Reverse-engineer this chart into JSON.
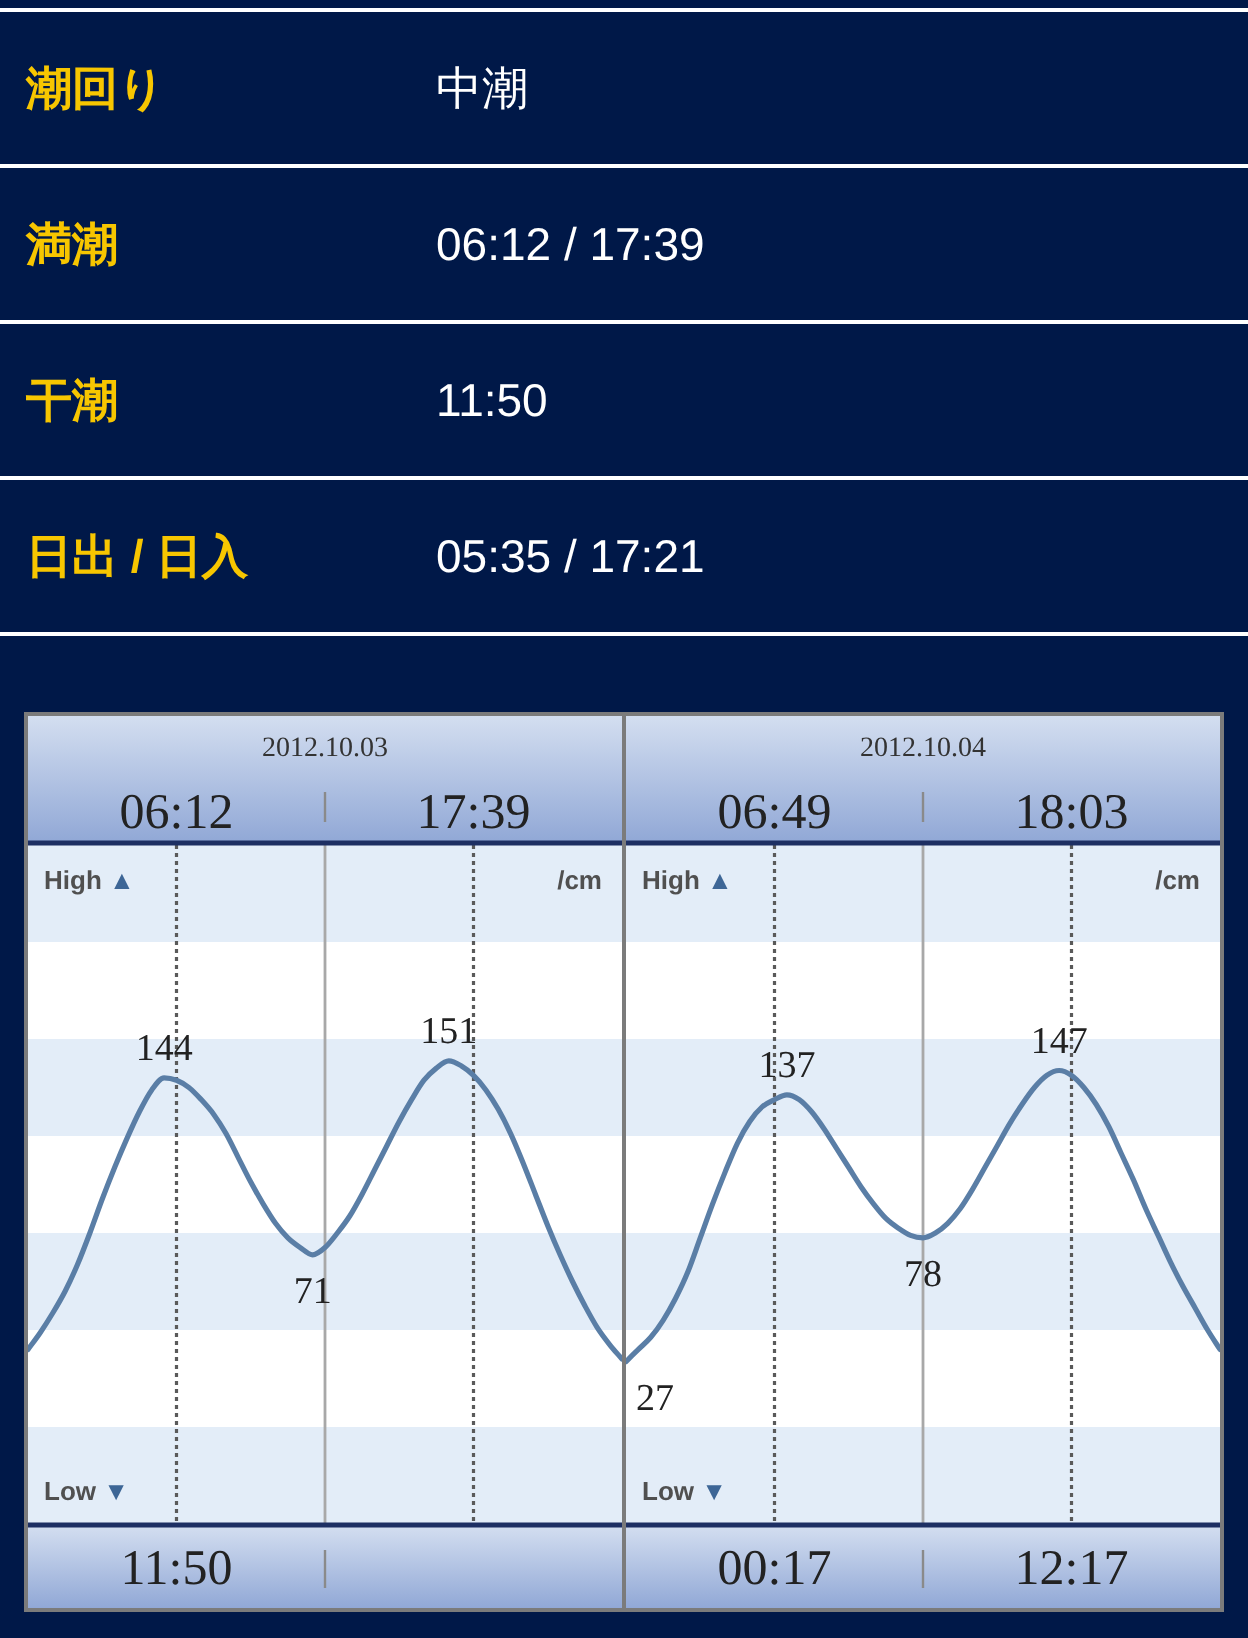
{
  "chart_data": [
    {
      "type": "other",
      "annotations": [
        "潮回り",
        "中潮",
        "満潮",
        "06:12 / 17:39",
        "干潮",
        "11:50",
        "日出 / 日入",
        "05:35 / 17:21"
      ]
    },
    {
      "type": "line",
      "title": "2012.10.03",
      "ylabel": "/cm",
      "annotations": [
        "High ▲",
        "Low ▼",
        "06:12",
        "17:39",
        "11:50"
      ],
      "ylim": [
        -40,
        240
      ],
      "categories": [
        null,
        null,
        null,
        null,
        null,
        null,
        null,
        null,
        null,
        null,
        null,
        null,
        null,
        null,
        null,
        null,
        null,
        null,
        null,
        null,
        null,
        null,
        null,
        null,
        null,
        null,
        null,
        null,
        null,
        null,
        null,
        null,
        null,
        null,
        null,
        null,
        null,
        null,
        null,
        null,
        null,
        null,
        null,
        null,
        null,
        null,
        null,
        null,
        null
      ],
      "bands": [
        {
          "axis": "y",
          "from": 200,
          "to": 240,
          "color": "#e3edf8"
        },
        {
          "axis": "y",
          "from": 120,
          "to": 160,
          "color": "#e3edf8"
        },
        {
          "axis": "y",
          "from": 40,
          "to": 80,
          "color": "#e3edf8"
        },
        {
          "axis": "y",
          "from": -40,
          "to": 0,
          "color": "#e3edf8"
        }
      ],
      "series": [
        {
          "color": "#5a7ea6",
          "values": [
            32,
            39,
            47,
            56,
            67,
            80,
            94,
            107,
            119,
            130,
            139,
            144,
            143,
            140,
            135,
            129,
            121,
            111,
            101,
            92,
            84,
            78,
            74,
            71,
            74,
            80,
            87,
            96,
            106,
            116,
            126,
            135,
            143,
            148,
            151,
            149,
            145,
            139,
            131,
            121,
            109,
            96,
            83,
            71,
            60,
            50,
            41,
            34,
            28
          ],
          "value_labels": [
            null,
            null,
            null,
            null,
            null,
            null,
            null,
            null,
            null,
            null,
            null,
            "144",
            null,
            null,
            null,
            null,
            null,
            null,
            null,
            null,
            null,
            null,
            null,
            "71",
            null,
            null,
            null,
            null,
            null,
            null,
            null,
            null,
            null,
            null,
            "151",
            null,
            null,
            null,
            null,
            null,
            null,
            null,
            null,
            null,
            null,
            null,
            null,
            null,
            null
          ]
        }
      ]
    },
    {
      "type": "line",
      "title": "2012.10.04",
      "ylabel": "/cm",
      "annotations": [
        "High ▲",
        "Low ▼",
        "06:49",
        "18:03",
        "00:17",
        "12:17"
      ],
      "ylim": [
        -40,
        240
      ],
      "categories": [
        null,
        null,
        null,
        null,
        null,
        null,
        null,
        null,
        null,
        null,
        null,
        null,
        null,
        null,
        null,
        null,
        null,
        null,
        null,
        null,
        null,
        null,
        null,
        null,
        null,
        null,
        null,
        null,
        null,
        null,
        null,
        null,
        null,
        null,
        null,
        null,
        null,
        null,
        null,
        null,
        null,
        null,
        null,
        null,
        null,
        null,
        null,
        null,
        null
      ],
      "bands": [
        {
          "axis": "y",
          "from": 200,
          "to": 240,
          "color": "#e3edf8"
        },
        {
          "axis": "y",
          "from": 120,
          "to": 160,
          "color": "#e3edf8"
        },
        {
          "axis": "y",
          "from": 40,
          "to": 80,
          "color": "#e3edf8"
        },
        {
          "axis": "y",
          "from": -40,
          "to": 0,
          "color": "#e3edf8"
        }
      ],
      "series": [
        {
          "color": "#5a7ea6",
          "values": [
            27,
            32,
            37,
            44,
            53,
            64,
            78,
            92,
            105,
            117,
            126,
            132,
            135,
            137,
            135,
            130,
            123,
            115,
            107,
            99,
            92,
            86,
            82,
            79,
            78,
            80,
            84,
            90,
            98,
            107,
            116,
            125,
            133,
            140,
            145,
            147,
            145,
            140,
            133,
            124,
            113,
            102,
            90,
            79,
            68,
            58,
            49,
            40,
            32
          ],
          "value_labels": [
            "27",
            null,
            null,
            null,
            null,
            null,
            null,
            null,
            null,
            null,
            null,
            null,
            null,
            "137",
            null,
            null,
            null,
            null,
            null,
            null,
            null,
            null,
            null,
            null,
            "78",
            null,
            null,
            null,
            null,
            null,
            null,
            null,
            null,
            null,
            null,
            "147",
            null,
            null,
            null,
            null,
            null,
            null,
            null,
            null,
            null,
            null,
            null,
            null,
            null
          ]
        }
      ]
    }
  ]
}
